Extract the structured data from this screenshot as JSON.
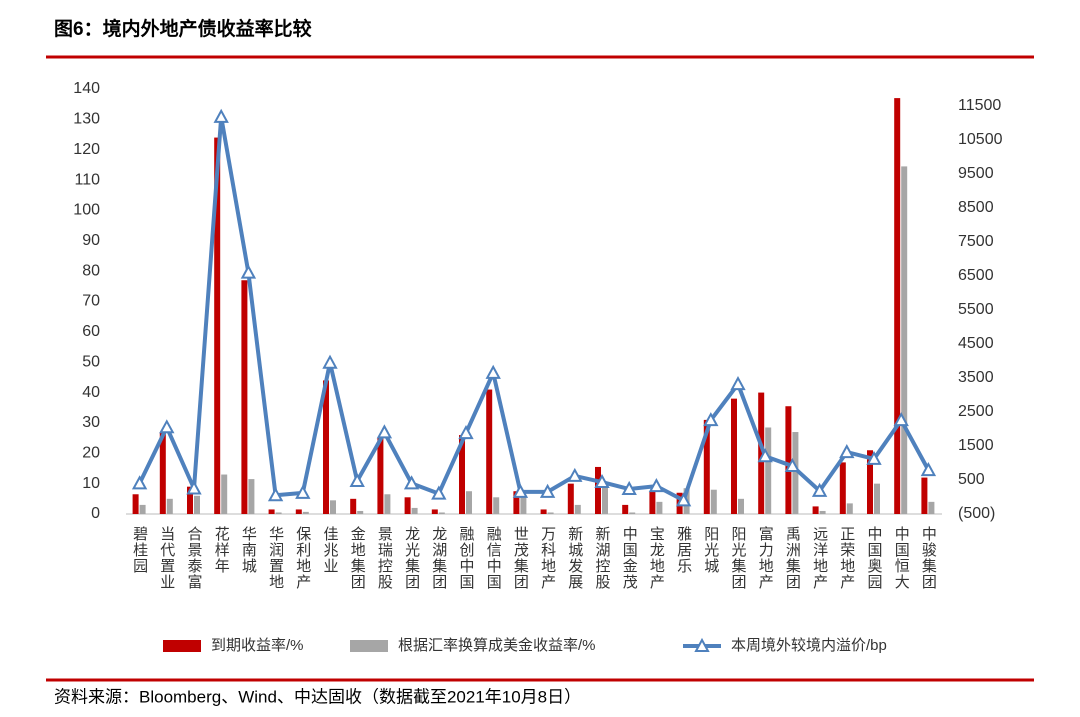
{
  "chart_data": {
    "type": "bar_line",
    "title": "图6：境内外地产债收益率比较",
    "source": "资料来源：Bloomberg、Wind、中达固收（数据截至2021年10月8日）",
    "categories": [
      "碧桂园",
      "当代置业",
      "合景泰富",
      "花样年",
      "华南城",
      "华润置地",
      "保利地产",
      "佳兆业",
      "金地集团",
      "景瑞控股",
      "龙光集团",
      "龙湖集团",
      "融创中国",
      "融信中国",
      "世茂集团",
      "万科地产",
      "新城发展",
      "新湖控股",
      "中国金茂",
      "宝龙地产",
      "雅居乐",
      "阳光城",
      "阳光集团",
      "富力地产",
      "禹洲集团",
      "远洋地产",
      "正荣地产",
      "中国奥园",
      "中国恒大",
      "中骏集团"
    ],
    "series": [
      {
        "name": "到期收益率/%",
        "type": "bar",
        "color": "#C00000",
        "values": [
          6.5,
          27,
          9,
          124,
          77,
          1.5,
          1.5,
          44,
          5,
          25,
          5.5,
          1.5,
          26,
          41,
          7.5,
          1.5,
          10,
          15.5,
          3,
          7.5,
          7,
          31,
          38,
          40,
          35.5,
          2.5,
          17,
          21,
          137,
          12
        ]
      },
      {
        "name": "根据汇率换算成美金收益率/%",
        "type": "bar",
        "color": "#A6A6A6",
        "values": [
          3,
          5,
          6,
          13,
          11.5,
          0.5,
          0.7,
          4.5,
          1,
          6.5,
          2,
          0.5,
          7.5,
          5.5,
          6,
          0.5,
          3,
          9,
          0.5,
          4,
          8.5,
          8,
          5,
          28.5,
          27,
          1,
          3.5,
          10,
          114.5,
          4
        ]
      },
      {
        "name": "本周境外较境内溢价/bp",
        "type": "line",
        "axis": "y2",
        "color": "#4F81BD",
        "values": [
          400,
          2050,
          250,
          11180,
          6600,
          50,
          120,
          3950,
          470,
          1900,
          400,
          100,
          1880,
          3650,
          150,
          150,
          620,
          440,
          235,
          320,
          -100,
          2260,
          3320,
          1200,
          910,
          180,
          1320,
          1120,
          2260,
          790
        ]
      }
    ],
    "ylim": [
      0,
      140
    ],
    "yticks": [
      0,
      10,
      20,
      30,
      40,
      50,
      60,
      70,
      80,
      90,
      100,
      110,
      120,
      130,
      140
    ],
    "y2lim": [
      -500,
      12000
    ],
    "y2ticks": [
      {
        "value": -500,
        "label": "(500)"
      },
      500,
      1500,
      2500,
      3500,
      4500,
      5500,
      6500,
      7500,
      8500,
      9500,
      10500,
      11500
    ],
    "y2_negative_tick_color": "#C00000",
    "accent_color": "#C00000"
  }
}
